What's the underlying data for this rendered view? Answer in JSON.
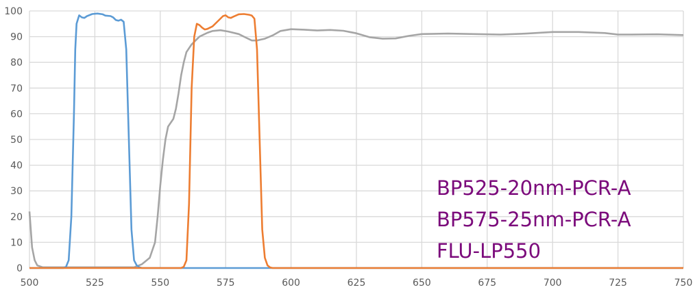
{
  "chart_data": {
    "type": "line",
    "title": "",
    "xlabel": "",
    "ylabel": "",
    "xlim": [
      500,
      750
    ],
    "ylim": [
      0,
      100
    ],
    "grid": true,
    "x_ticks": [
      "500",
      "525",
      "550",
      "575",
      "600",
      "625",
      "650",
      "675",
      "700",
      "725",
      "750"
    ],
    "y_ticks": [
      "0",
      "10",
      "20",
      "30",
      "40",
      "50",
      "60",
      "70",
      "80",
      "90",
      "100"
    ],
    "legend_placement": "bottom-right",
    "series": [
      {
        "name": "BP525-20nm-PCR-A",
        "color": "#5b9bd5",
        "points": [
          [
            500,
            0
          ],
          [
            513,
            0
          ],
          [
            514,
            0.5
          ],
          [
            515,
            3
          ],
          [
            516,
            20
          ],
          [
            517,
            60
          ],
          [
            517.5,
            85
          ],
          [
            518,
            95
          ],
          [
            519,
            98.3
          ],
          [
            520,
            97.5
          ],
          [
            521,
            97.3
          ],
          [
            522,
            98
          ],
          [
            524,
            98.8
          ],
          [
            526,
            99
          ],
          [
            528,
            98.7
          ],
          [
            529,
            98.2
          ],
          [
            531,
            98
          ],
          [
            532,
            97.5
          ],
          [
            533,
            96.5
          ],
          [
            534,
            96.2
          ],
          [
            535,
            96.6
          ],
          [
            536,
            95.8
          ],
          [
            537,
            85
          ],
          [
            538,
            50
          ],
          [
            539,
            15
          ],
          [
            540,
            3
          ],
          [
            541,
            1
          ],
          [
            542,
            0.3
          ],
          [
            543,
            0
          ],
          [
            750,
            0
          ]
        ]
      },
      {
        "name": "BP575-25nm-PCR-A",
        "color": "#ed7d31",
        "points": [
          [
            500,
            0
          ],
          [
            558,
            0
          ],
          [
            559,
            0.5
          ],
          [
            560,
            3
          ],
          [
            561,
            25
          ],
          [
            562,
            70
          ],
          [
            563,
            90
          ],
          [
            564,
            95
          ],
          [
            565,
            94.5
          ],
          [
            566,
            93.5
          ],
          [
            567,
            92.8
          ],
          [
            568,
            93
          ],
          [
            570,
            94
          ],
          [
            572,
            96
          ],
          [
            574,
            98
          ],
          [
            575,
            98.3
          ],
          [
            576,
            97.5
          ],
          [
            577,
            97.3
          ],
          [
            578,
            97.8
          ],
          [
            580,
            98.7
          ],
          [
            582,
            98.8
          ],
          [
            584,
            98.5
          ],
          [
            585,
            98.2
          ],
          [
            586,
            97
          ],
          [
            587,
            85
          ],
          [
            588,
            50
          ],
          [
            589,
            15
          ],
          [
            590,
            4
          ],
          [
            591,
            1
          ],
          [
            592,
            0.2
          ],
          [
            593,
            0
          ],
          [
            750,
            0
          ]
        ]
      },
      {
        "name": "FLU-LP550",
        "color": "#a5a5a5",
        "points": [
          [
            500,
            22
          ],
          [
            501,
            8
          ],
          [
            502,
            3
          ],
          [
            503,
            1
          ],
          [
            505,
            0.3
          ],
          [
            540,
            0.3
          ],
          [
            543,
            1.5
          ],
          [
            546,
            4
          ],
          [
            548,
            10
          ],
          [
            549,
            20
          ],
          [
            550,
            32
          ],
          [
            551,
            42
          ],
          [
            552,
            50
          ],
          [
            553,
            55
          ],
          [
            555,
            58
          ],
          [
            556,
            62
          ],
          [
            557,
            68
          ],
          [
            558,
            75
          ],
          [
            559,
            80
          ],
          [
            560,
            84
          ],
          [
            562,
            87
          ],
          [
            565,
            90
          ],
          [
            568,
            91.5
          ],
          [
            570,
            92.2
          ],
          [
            573,
            92.5
          ],
          [
            576,
            92
          ],
          [
            580,
            91
          ],
          [
            583,
            89.5
          ],
          [
            585,
            88.5
          ],
          [
            587,
            88.5
          ],
          [
            590,
            89.2
          ],
          [
            593,
            90.5
          ],
          [
            596,
            92.2
          ],
          [
            600,
            92.9
          ],
          [
            605,
            92.7
          ],
          [
            610,
            92.4
          ],
          [
            615,
            92.6
          ],
          [
            620,
            92.3
          ],
          [
            625,
            91.3
          ],
          [
            630,
            89.8
          ],
          [
            635,
            89.2
          ],
          [
            640,
            89.3
          ],
          [
            645,
            90.3
          ],
          [
            650,
            91
          ],
          [
            660,
            91.2
          ],
          [
            670,
            91
          ],
          [
            680,
            90.8
          ],
          [
            690,
            91.2
          ],
          [
            700,
            91.8
          ],
          [
            710,
            91.8
          ],
          [
            720,
            91.4
          ],
          [
            725,
            90.8
          ],
          [
            730,
            90.8
          ],
          [
            740,
            90.9
          ],
          [
            750,
            90.6
          ]
        ]
      }
    ]
  }
}
